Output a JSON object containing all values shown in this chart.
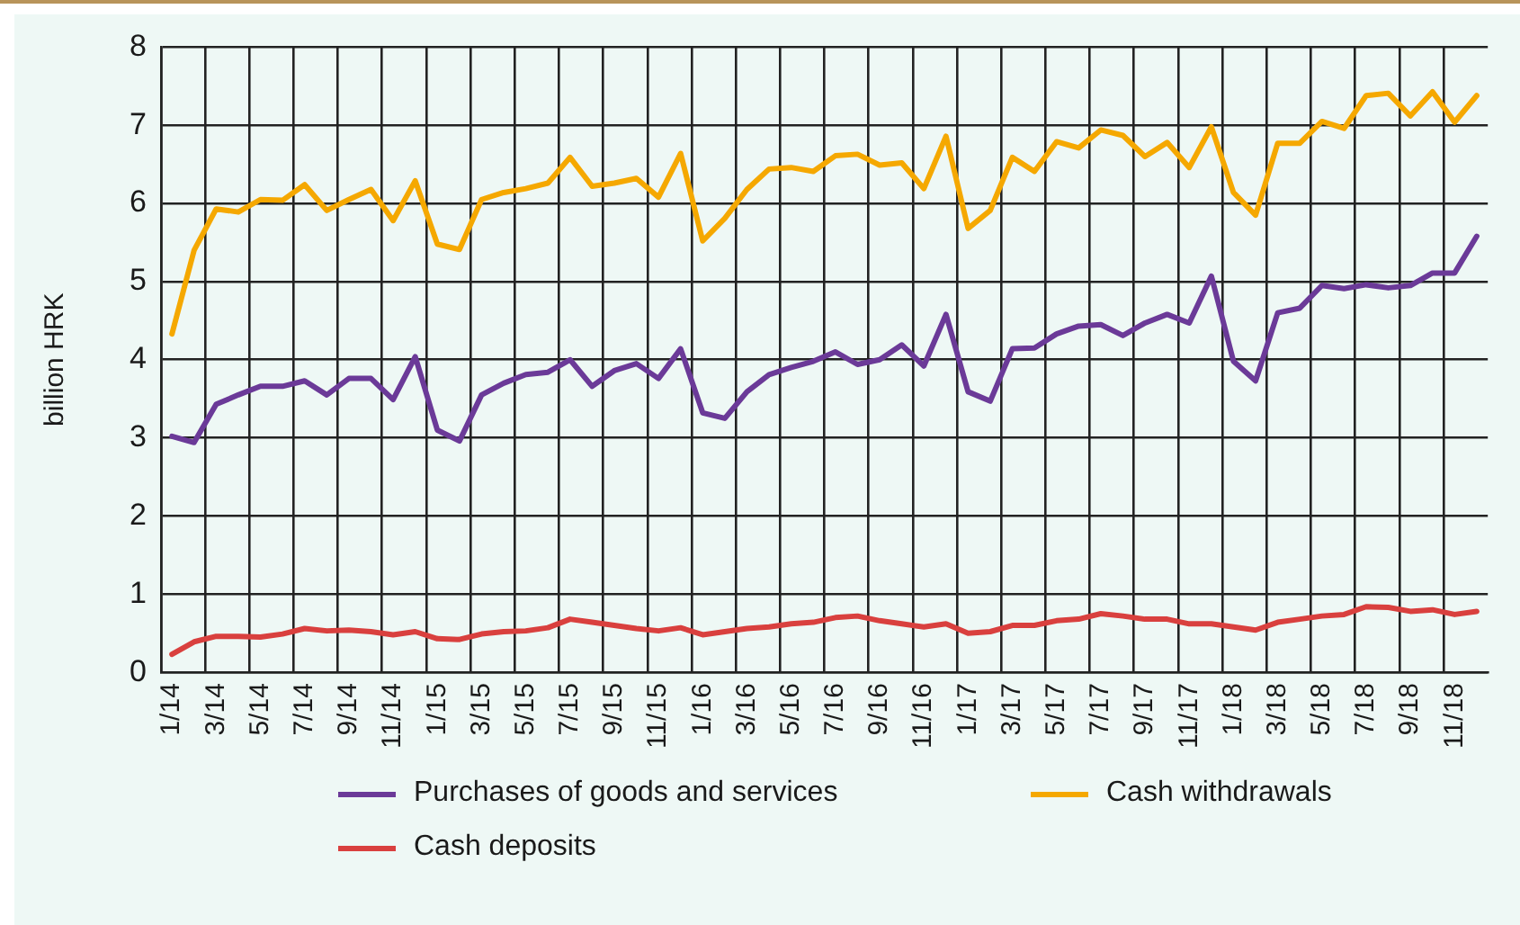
{
  "chart_data": {
    "type": "line",
    "ylabel": "billion HRK",
    "categories": [
      "1/14",
      null,
      "3/14",
      null,
      "5/14",
      null,
      "7/14",
      null,
      "9/14",
      null,
      "11/14",
      null,
      "1/15",
      null,
      "3/15",
      null,
      "5/15",
      null,
      "7/15",
      null,
      "9/15",
      null,
      "11/15",
      null,
      "1/16",
      null,
      "3/16",
      null,
      "5/16",
      null,
      "7/16",
      null,
      "9/16",
      null,
      "11/16",
      null,
      "1/17",
      null,
      "3/17",
      null,
      "5/17",
      null,
      "7/17",
      null,
      "9/17",
      null,
      "11/17",
      null,
      "1/18",
      null,
      "3/18",
      null,
      "5/18",
      null,
      "7/18",
      null,
      "9/18",
      null,
      "11/18",
      null
    ],
    "series": [
      {
        "name": "Purchases of goods and services",
        "color": "#6b3a98",
        "values": [
          3.02,
          2.94,
          3.43,
          3.55,
          3.66,
          3.66,
          3.73,
          3.55,
          3.76,
          3.76,
          3.49,
          4.04,
          3.1,
          2.96,
          3.55,
          3.7,
          3.81,
          3.84,
          4.0,
          3.66,
          3.86,
          3.95,
          3.76,
          4.14,
          3.32,
          3.25,
          3.59,
          3.81,
          3.9,
          3.98,
          4.1,
          3.94,
          4.0,
          4.19,
          3.92,
          4.58,
          3.59,
          3.47,
          4.14,
          4.15,
          4.33,
          4.43,
          4.45,
          4.31,
          4.47,
          4.58,
          4.47,
          5.07,
          3.98,
          3.73,
          4.6,
          4.66,
          4.95,
          4.91,
          4.96,
          4.92,
          4.95,
          5.11,
          5.11,
          5.58
        ]
      },
      {
        "name": "Cash withdrawals",
        "color": "#f5a800",
        "values": [
          4.33,
          5.4,
          5.93,
          5.89,
          6.05,
          6.04,
          6.24,
          5.91,
          6.05,
          6.18,
          5.78,
          6.29,
          5.48,
          5.41,
          6.05,
          6.14,
          6.19,
          6.26,
          6.59,
          6.22,
          6.26,
          6.32,
          6.08,
          6.64,
          5.52,
          5.81,
          6.18,
          6.44,
          6.46,
          6.41,
          6.61,
          6.63,
          6.49,
          6.52,
          6.19,
          6.86,
          5.68,
          5.91,
          6.59,
          6.41,
          6.79,
          6.71,
          6.94,
          6.87,
          6.6,
          6.78,
          6.46,
          6.98,
          6.14,
          5.85,
          6.77,
          6.77,
          7.05,
          6.96,
          7.38,
          7.41,
          7.12,
          7.43,
          7.04,
          7.38
        ]
      },
      {
        "name": "Cash deposits",
        "color": "#d9403e",
        "values": [
          0.23,
          0.39,
          0.46,
          0.46,
          0.45,
          0.49,
          0.56,
          0.53,
          0.54,
          0.52,
          0.48,
          0.52,
          0.43,
          0.42,
          0.49,
          0.52,
          0.53,
          0.57,
          0.68,
          0.64,
          0.6,
          0.56,
          0.53,
          0.57,
          0.48,
          0.52,
          0.56,
          0.58,
          0.62,
          0.64,
          0.7,
          0.72,
          0.66,
          0.62,
          0.58,
          0.62,
          0.5,
          0.52,
          0.6,
          0.6,
          0.66,
          0.68,
          0.75,
          0.72,
          0.68,
          0.68,
          0.62,
          0.62,
          0.58,
          0.54,
          0.64,
          0.68,
          0.72,
          0.74,
          0.84,
          0.83,
          0.78,
          0.8,
          0.74,
          0.78
        ]
      }
    ],
    "ylim": [
      0,
      8
    ],
    "yticks": [
      0,
      1,
      2,
      3,
      4,
      5,
      6,
      7,
      8
    ],
    "grid": true,
    "legend": "bottom",
    "marker": "none",
    "line_style": "solid"
  }
}
